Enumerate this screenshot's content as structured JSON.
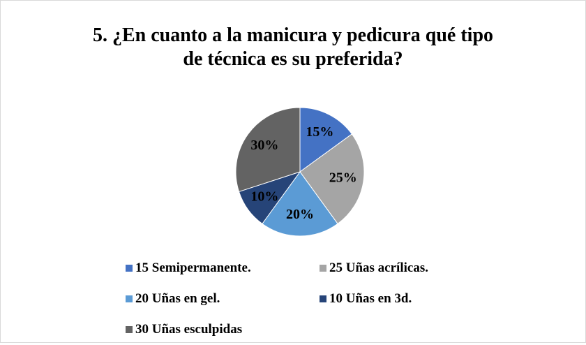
{
  "chart_data": {
    "type": "pie",
    "title": "5. ¿En cuanto a la manicura y pedicura qué tipo de técnica es su preferida?",
    "categories": [
      "15 Semipermanente.",
      "25 Uñas acrílicas.",
      "20 Uñas en gel.",
      "10 Uñas en 3d.",
      "30 Uñas esculpidas"
    ],
    "values": [
      15,
      25,
      20,
      10,
      30
    ],
    "value_labels": [
      "15%",
      "25%",
      "20%",
      "10%",
      "30%"
    ],
    "colors": [
      "#4472c4",
      "#a5a5a5",
      "#5b9bd5",
      "#264478",
      "#636363"
    ],
    "legend": "bottom"
  }
}
